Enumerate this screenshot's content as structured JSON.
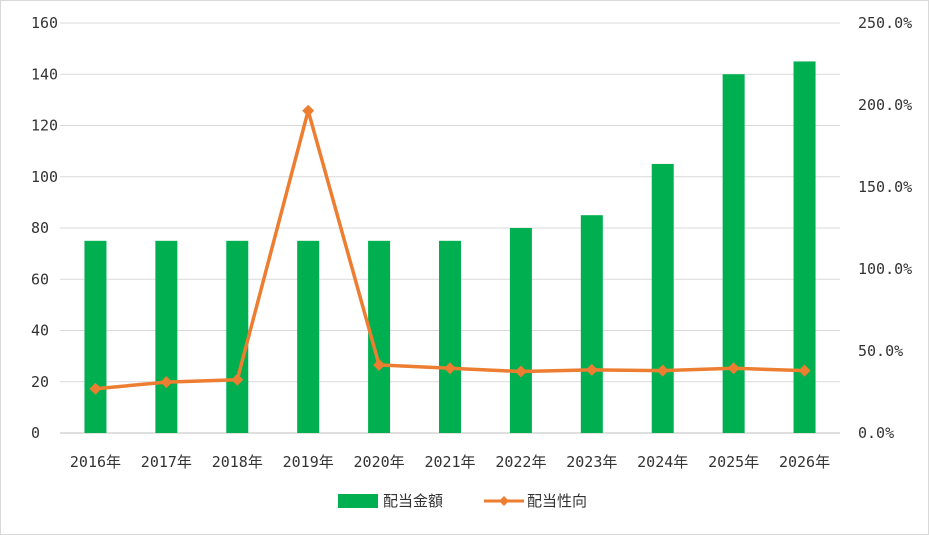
{
  "chart_data": {
    "type": "bar+line",
    "categories": [
      "2016年",
      "2017年",
      "2018年",
      "2019年",
      "2020年",
      "2021年",
      "2022年",
      "2023年",
      "2024年",
      "2025年",
      "2026年"
    ],
    "series": [
      {
        "name": "配当金額",
        "type": "bar",
        "axis": "left",
        "color": "#00b050",
        "values": [
          75,
          75,
          75,
          75,
          75,
          75,
          80,
          85,
          105,
          140,
          145
        ]
      },
      {
        "name": "配当性向",
        "type": "line",
        "axis": "right",
        "color": "#ed7d31",
        "values": [
          27.0,
          31.0,
          32.5,
          196.5,
          41.5,
          39.5,
          37.5,
          38.5,
          38.0,
          39.5,
          38.0
        ]
      }
    ],
    "y_left": {
      "min": 0,
      "max": 160,
      "step": 20,
      "tick_labels": [
        "0",
        "20",
        "40",
        "60",
        "80",
        "100",
        "120",
        "140",
        "160"
      ]
    },
    "y_right": {
      "min": 0,
      "max": 250,
      "step": 50,
      "tick_labels": [
        "0.0%",
        "50.0%",
        "100.0%",
        "150.0%",
        "200.0%",
        "250.0%"
      ]
    },
    "grid": true,
    "legend_position": "bottom"
  }
}
